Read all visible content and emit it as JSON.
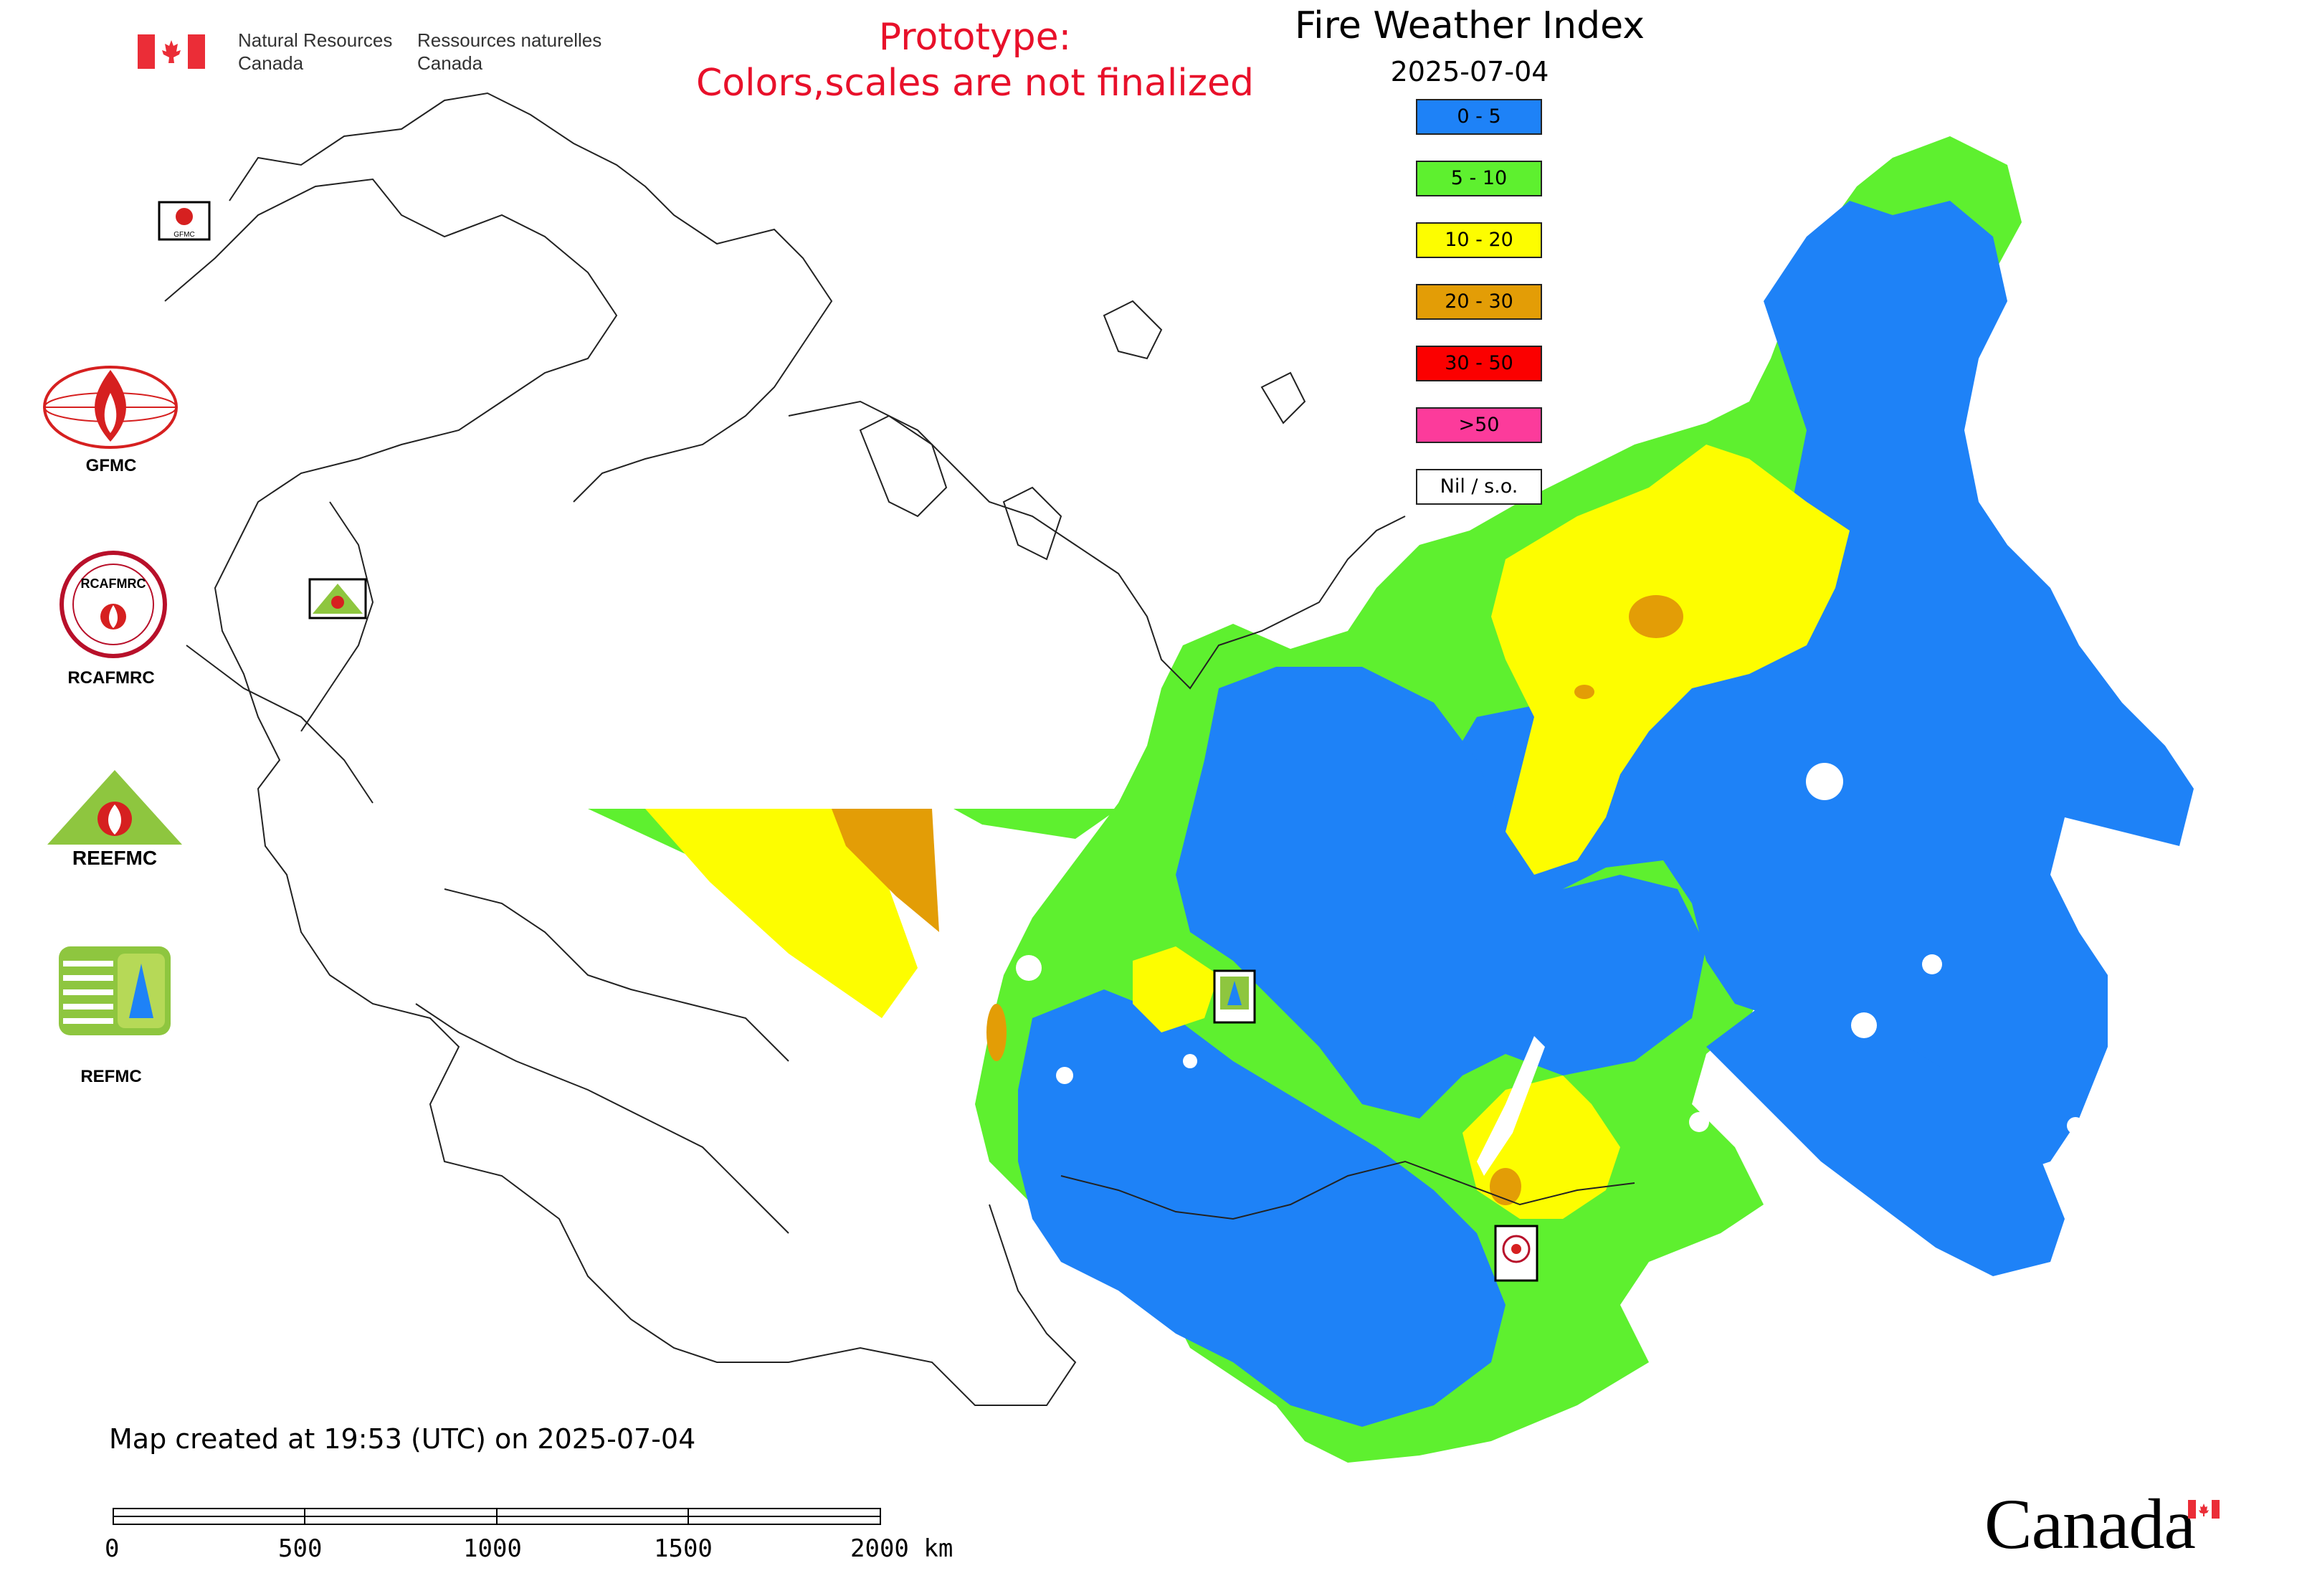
{
  "header": {
    "dept_en": [
      "Natural Resources",
      "Canada"
    ],
    "dept_fr": [
      "Ressources naturelles",
      "Canada"
    ],
    "prototype_line1": "Prototype:",
    "prototype_line2": "Colors,scales are not finalized"
  },
  "map": {
    "title": "Fire Weather Index",
    "date": "2025-07-04",
    "legend": [
      {
        "label": "0 - 5",
        "color": "#1e82f7"
      },
      {
        "label": "5 - 10",
        "color": "#5ef02f"
      },
      {
        "label": "10 - 20",
        "color": "#fdfd00"
      },
      {
        "label": "20 - 30",
        "color": "#e39d06"
      },
      {
        "label": "30 - 50",
        "color": "#fb0000"
      },
      {
        "label": ">50",
        "color": "#fc3b9b"
      },
      {
        "label": "Nil / s.o.",
        "color": "#ffffff"
      }
    ],
    "center_markers": [
      "GFMC",
      "REEFMC",
      "REFMC",
      "RCAFMRC"
    ]
  },
  "logos": [
    "GFMC",
    "RCAFMRC",
    "REEFMC",
    "REFMC"
  ],
  "footer": {
    "created": "Map created at 19:53 (UTC) on 2025-07-04",
    "scale_labels": [
      "0",
      "500",
      "1000",
      "1500",
      "2000 km"
    ],
    "wordmark": "Canada"
  },
  "colors": {
    "blue": "#1e82f7",
    "green": "#5ef02f",
    "yellow": "#fdfd00",
    "orange": "#e39d06",
    "red": "#fb0000",
    "pink": "#fc3b9b",
    "prototype_red": "#e8102a",
    "flag_red": "#eb2d37"
  }
}
